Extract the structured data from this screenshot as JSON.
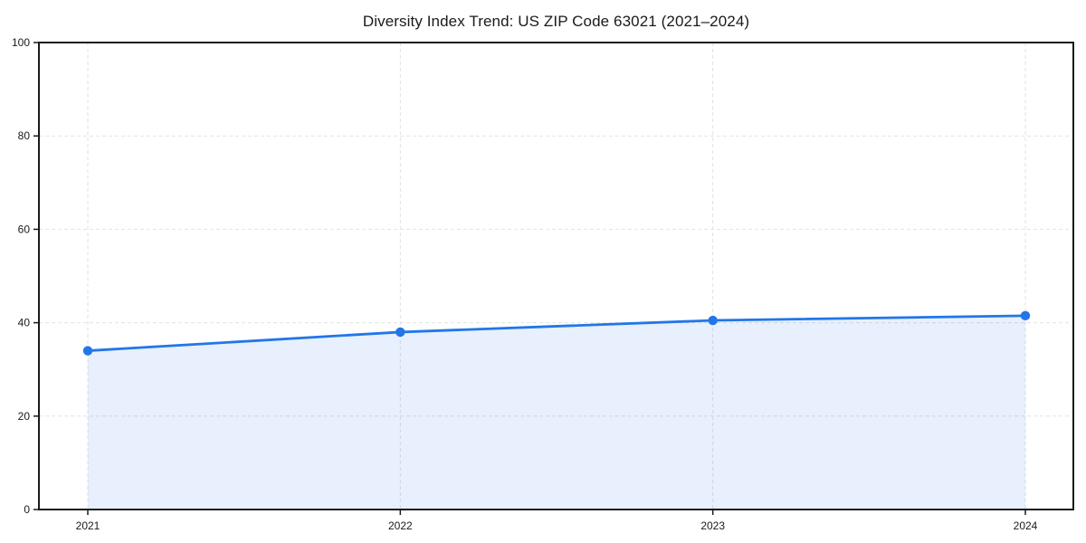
{
  "chart_data": {
    "type": "line",
    "title": "Diversity Index Trend: US ZIP Code 63021 (2021–2024)",
    "x": [
      "2021",
      "2022",
      "2023",
      "2024"
    ],
    "series": [
      {
        "name": "Diversity Index",
        "values": [
          34.0,
          38.0,
          40.5,
          41.5
        ]
      }
    ],
    "xlabel": "",
    "ylabel": "",
    "ylim": [
      0,
      100
    ],
    "yticks": [
      0,
      20,
      40,
      60,
      80,
      100
    ],
    "grid": "dashed, both axes",
    "legend_position": "none",
    "area_fill_to_zero": true,
    "colors": {
      "line": "#2276e8",
      "marker": "#2276e8",
      "area_fill": "rgba(34,118,232,0.11)",
      "gridline": "#e2e2e2",
      "axis": "#1a1a1a",
      "tick_text": "#1a1a1a",
      "background": "#ffffff"
    }
  }
}
